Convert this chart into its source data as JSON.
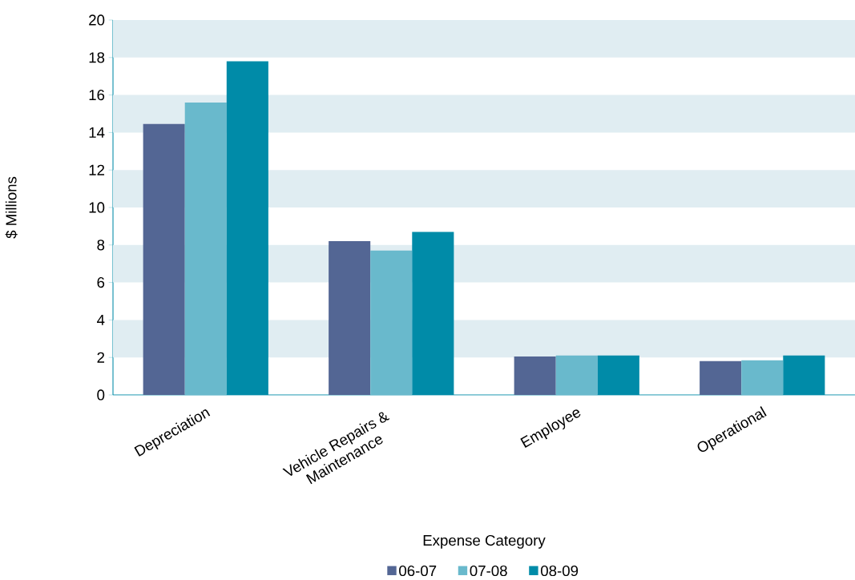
{
  "chart_data": {
    "type": "bar",
    "xlabel": "Expense Category",
    "ylabel": "$ Millions",
    "categories": [
      "Depreciation",
      "Vehicle Repairs & Maintenance",
      "Employee",
      "Operational"
    ],
    "series": [
      {
        "name": "06-07",
        "color": "#536694",
        "values": [
          14.45,
          8.2,
          2.05,
          1.8
        ]
      },
      {
        "name": "07-08",
        "color": "#69b9cc",
        "values": [
          15.6,
          7.7,
          2.1,
          1.85
        ]
      },
      {
        "name": "08-09",
        "color": "#008ba8",
        "values": [
          17.8,
          8.7,
          2.1,
          2.1
        ]
      }
    ],
    "ylim": [
      0,
      20
    ],
    "yticks": [
      0,
      2,
      4,
      6,
      8,
      10,
      12,
      14,
      16,
      18,
      20
    ],
    "bands": [
      {
        "axis": "y",
        "from": 2,
        "to": 4,
        "color": "#e0edf2"
      },
      {
        "axis": "y",
        "from": 6,
        "to": 8,
        "color": "#e0edf2"
      },
      {
        "axis": "y",
        "from": 10,
        "to": 12,
        "color": "#e0edf2"
      },
      {
        "axis": "y",
        "from": 14,
        "to": 16,
        "color": "#e0edf2"
      },
      {
        "axis": "y",
        "from": 18,
        "to": 20,
        "color": "#e0edf2"
      }
    ],
    "legend": "bottom"
  }
}
